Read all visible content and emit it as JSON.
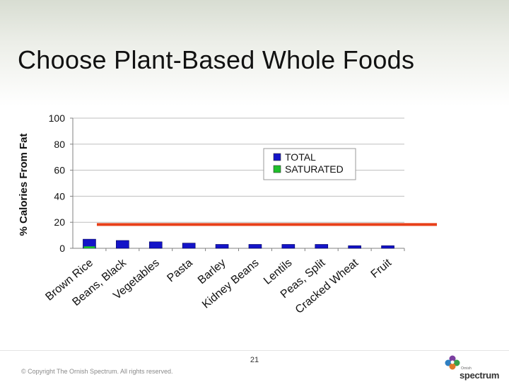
{
  "slide": {
    "title": "Choose Plant-Based Whole Foods",
    "page_number": "21",
    "copyright": "© Copyright The Ornish Spectrum. All rights reserved.",
    "logo_small_text": "Ornish",
    "logo_text": "spectrum"
  },
  "colors": {
    "total": "#1414c8",
    "saturated": "#1fbf2a",
    "reference_line": "#e8401a",
    "grid": "#bfbfbf"
  },
  "chart_data": {
    "type": "bar",
    "title": "",
    "xlabel": "",
    "ylabel": "% Calories From Fat",
    "ylim": [
      0,
      100
    ],
    "yticks": [
      0,
      20,
      40,
      60,
      80,
      100
    ],
    "grid": true,
    "legend_position": "top-right",
    "categories": [
      "Brown Rice",
      "Beans, Black",
      "Vegetables",
      "Pasta",
      "Barley",
      "Kidney Beans",
      "Lentils",
      "Peas, Split",
      "Cracked Wheat",
      "Fruit"
    ],
    "series": [
      {
        "name": "TOTAL",
        "values": [
          7,
          6,
          5,
          4,
          3,
          3,
          3,
          3,
          2,
          2
        ]
      },
      {
        "name": "SATURATED",
        "values": [
          1.5,
          0,
          0,
          0,
          0,
          0,
          0,
          0,
          0,
          0
        ]
      }
    ],
    "reference_line": {
      "value": 15
    }
  }
}
